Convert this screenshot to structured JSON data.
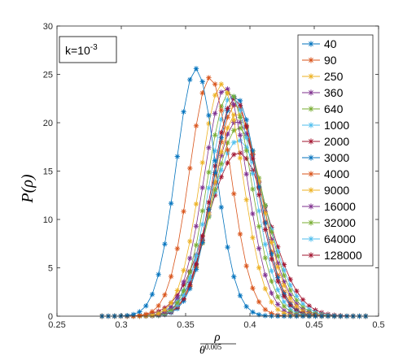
{
  "chart_data": {
    "type": "line",
    "title": "",
    "ylabel": "P(ρ)",
    "xlabel_numerator": "ρ",
    "xlabel_denominator_base": "θ",
    "xlabel_denominator_exponent": "0.005",
    "xlim": [
      0.25,
      0.5
    ],
    "ylim": [
      0,
      30
    ],
    "xticks": [
      "0.25",
      "0.3",
      "0.35",
      "0.4",
      "0.45",
      "0.5"
    ],
    "yticks": [
      "0",
      "5",
      "10",
      "15",
      "20",
      "25",
      "30"
    ],
    "x_range_points": [
      0.285,
      0.49
    ],
    "annotation": {
      "prefix": "k=10",
      "exponent": "-3"
    },
    "legend_position": "top-right",
    "marker": "asterisk",
    "series": [
      {
        "name": "40",
        "color": "#0072BD",
        "peak_x": 0.358,
        "peak_y": 25.6,
        "sigma": 0.0154
      },
      {
        "name": "90",
        "color": "#D95319",
        "peak_x": 0.369,
        "peak_y": 24.7,
        "sigma": 0.016
      },
      {
        "name": "250",
        "color": "#EDB120",
        "peak_x": 0.378,
        "peak_y": 24.0,
        "sigma": 0.0164
      },
      {
        "name": "360",
        "color": "#7E2F8E",
        "peak_x": 0.381,
        "peak_y": 23.6,
        "sigma": 0.0167
      },
      {
        "name": "640",
        "color": "#77AC30",
        "peak_x": 0.384,
        "peak_y": 23.2,
        "sigma": 0.017
      },
      {
        "name": "1000",
        "color": "#4DBEEE",
        "peak_x": 0.386,
        "peak_y": 22.8,
        "sigma": 0.0173
      },
      {
        "name": "2000",
        "color": "#A2142F",
        "peak_x": 0.388,
        "peak_y": 22.5,
        "sigma": 0.0176
      },
      {
        "name": "3000",
        "color": "#0072BD",
        "peak_x": 0.389,
        "peak_y": 22.7,
        "sigma": 0.0175
      },
      {
        "name": "4000",
        "color": "#D95319",
        "peak_x": 0.389,
        "peak_y": 21.9,
        "sigma": 0.018
      },
      {
        "name": "9000",
        "color": "#EDB120",
        "peak_x": 0.39,
        "peak_y": 21.0,
        "sigma": 0.0188
      },
      {
        "name": "16000",
        "color": "#7E2F8E",
        "peak_x": 0.39,
        "peak_y": 20.2,
        "sigma": 0.0196
      },
      {
        "name": "32000",
        "color": "#77AC30",
        "peak_x": 0.391,
        "peak_y": 19.5,
        "sigma": 0.0203
      },
      {
        "name": "64000",
        "color": "#4DBEEE",
        "peak_x": 0.391,
        "peak_y": 18.2,
        "sigma": 0.0217
      },
      {
        "name": "128000",
        "color": "#A2142F",
        "peak_x": 0.391,
        "peak_y": 16.9,
        "sigma": 0.0234
      }
    ]
  }
}
